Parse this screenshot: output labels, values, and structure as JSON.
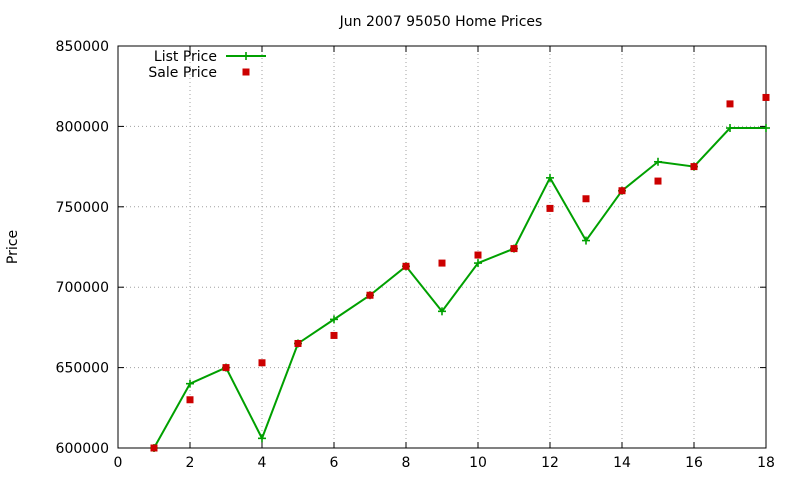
{
  "chart_data": {
    "type": "line",
    "title": "Jun 2007 95050 Home Prices",
    "xlabel": "",
    "ylabel": "Price",
    "xlim": [
      0,
      18
    ],
    "ylim": [
      600000,
      850000
    ],
    "x_ticks": [
      0,
      2,
      4,
      6,
      8,
      10,
      12,
      14,
      16,
      18
    ],
    "y_ticks": [
      600000,
      650000,
      700000,
      750000,
      800000,
      850000
    ],
    "grid": true,
    "legend_position": "top-left",
    "series": [
      {
        "name": "List Price",
        "kind": "line",
        "color": "#00a000",
        "marker": "plus",
        "x": [
          1,
          2,
          3,
          4,
          5,
          6,
          7,
          8,
          9,
          10,
          11,
          12,
          13,
          14,
          15,
          16,
          17,
          18
        ],
        "y": [
          600000,
          640000,
          650000,
          606000,
          665000,
          680000,
          695000,
          713000,
          685000,
          715000,
          724000,
          768000,
          729000,
          760000,
          778000,
          775000,
          799000,
          799000
        ]
      },
      {
        "name": "Sale Price",
        "kind": "scatter",
        "color": "#cc0000",
        "marker": "square",
        "x": [
          1,
          2,
          3,
          4,
          5,
          6,
          7,
          8,
          9,
          10,
          11,
          12,
          13,
          14,
          15,
          16,
          17,
          18
        ],
        "y": [
          600000,
          630000,
          650000,
          653000,
          665000,
          670000,
          695000,
          713000,
          715000,
          720000,
          724000,
          749000,
          755000,
          760000,
          766000,
          775000,
          814000,
          818000
        ]
      }
    ]
  }
}
